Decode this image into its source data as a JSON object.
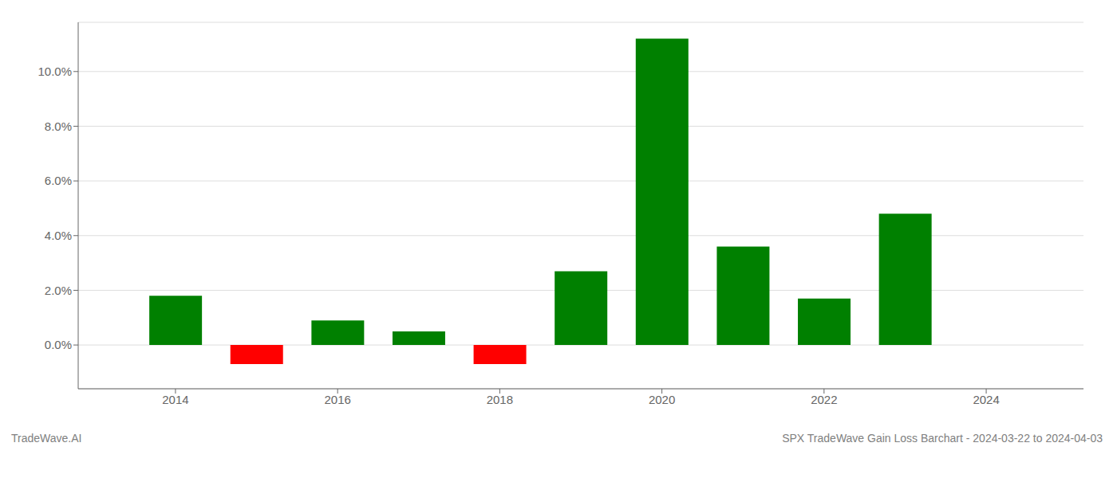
{
  "chart_data": {
    "type": "bar",
    "x": [
      2014,
      2015,
      2016,
      2017,
      2018,
      2019,
      2020,
      2021,
      2022,
      2023
    ],
    "values": [
      0.018,
      -0.007,
      0.009,
      0.005,
      -0.007,
      0.027,
      0.112,
      0.036,
      0.017,
      0.048
    ],
    "colors": [
      "#008000",
      "#ff0000",
      "#008000",
      "#008000",
      "#ff0000",
      "#008000",
      "#008000",
      "#008000",
      "#008000",
      "#008000"
    ],
    "xlim": [
      2012.8,
      2025.2
    ],
    "xticks": [
      2014,
      2016,
      2018,
      2020,
      2022,
      2024
    ],
    "ylim": [
      -0.016,
      0.118
    ],
    "yticks": [
      {
        "value": 0.0,
        "label": "0.0%"
      },
      {
        "value": 0.02,
        "label": "2.0%"
      },
      {
        "value": 0.04,
        "label": "4.0%"
      },
      {
        "value": 0.06,
        "label": "6.0%"
      },
      {
        "value": 0.08,
        "label": "8.0%"
      },
      {
        "value": 0.1,
        "label": "10.0%"
      }
    ],
    "grid": true,
    "annotations": [
      "TradeWave.AI",
      "SPX TradeWave Gain Loss Barchart - 2024-03-22 to 2024-04-03"
    ]
  }
}
